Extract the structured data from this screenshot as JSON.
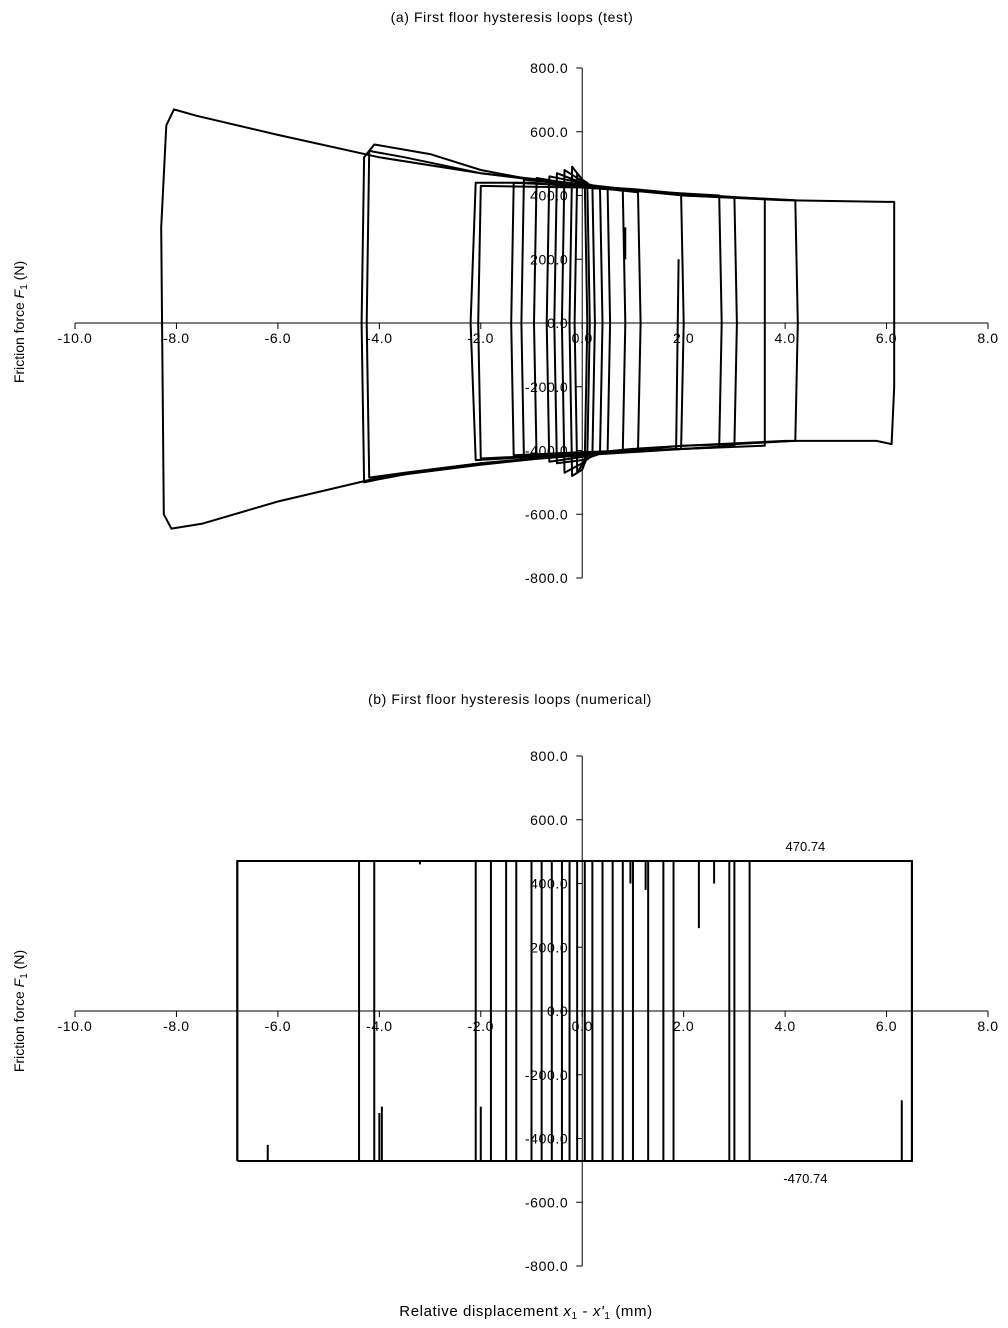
{
  "figure": {
    "xlabel_prefix": "Relative displacement ",
    "xlabel_var1": "x",
    "xlabel_sub1": "1",
    "xlabel_mid": " - ",
    "xlabel_var2": "x'",
    "xlabel_sub2": "1",
    "xlabel_unit": " (mm)"
  },
  "chart_data": [
    {
      "type": "line",
      "title": "(a) First floor hysteresis loops (test)",
      "xlabel": "Relative displacement x1 - x'1 (mm)",
      "ylabel_prefix": "Friction force ",
      "ylabel_var": "F",
      "ylabel_sub": "1",
      "ylabel_unit": " (N)",
      "xlim": [
        -10,
        8
      ],
      "ylim": [
        -800,
        800
      ],
      "x_ticks": [
        "-10.0",
        "-8.0",
        "-6.0",
        "-4.0",
        "-2.0",
        "0.0",
        "2.0",
        "4.0",
        "6.0",
        "8.0"
      ],
      "y_ticks": [
        "800.0",
        "600.0",
        "400.0",
        "200.0",
        "0.0",
        "-200.0",
        "-400.0",
        "-600.0",
        "-800.0"
      ],
      "line_color": "#000000",
      "grid": false,
      "series": [
        {
          "x": [
            -8.3,
            -8.2,
            -8.05,
            -7.6,
            -6.0,
            -4.0,
            -2.0,
            0.0,
            2.0,
            4.0,
            6.0,
            6.15,
            6.15,
            6.1,
            5.8,
            4.0,
            2.0,
            0.0,
            -2.0,
            -4.0,
            -6.0,
            -7.5,
            -8.1,
            -8.25,
            -8.3
          ],
          "y": [
            300,
            620,
            670,
            650,
            590,
            520,
            470,
            430,
            400,
            385,
            380,
            380,
            -200,
            -380,
            -370,
            -370,
            -385,
            -410,
            -445,
            -485,
            -560,
            -630,
            -645,
            -600,
            300
          ]
        },
        {
          "x": [
            -4.35,
            -4.3,
            -4.1,
            -3.0,
            -2.0,
            -1.0,
            0.0,
            1.0,
            2.0,
            3.0,
            4.2,
            4.25,
            4.2,
            3.0,
            2.0,
            1.0,
            0.0,
            -1.0,
            -2.0,
            -3.0,
            -4.0,
            -4.3,
            -4.35
          ],
          "y": [
            0,
            520,
            560,
            530,
            480,
            450,
            430,
            420,
            405,
            395,
            385,
            0,
            -370,
            -380,
            -385,
            -395,
            -410,
            -425,
            -440,
            -460,
            -490,
            -500,
            0
          ]
        },
        {
          "x": [
            -4.25,
            -4.2,
            -3.5,
            -2.0,
            0.0,
            2.0,
            3.6,
            3.6,
            2.0,
            0.0,
            -2.0,
            -3.5,
            -4.2,
            -4.25
          ],
          "y": [
            0,
            540,
            520,
            470,
            435,
            400,
            390,
            -385,
            -395,
            -415,
            -440,
            -470,
            -485,
            0
          ]
        },
        {
          "x": [
            -2.2,
            -2.1,
            -1.0,
            0.0,
            1.0,
            2.0,
            3.0,
            3.05,
            3.0,
            2.0,
            1.0,
            0.0,
            -1.0,
            -2.1,
            -2.2
          ],
          "y": [
            0,
            440,
            440,
            425,
            415,
            405,
            395,
            0,
            -385,
            -395,
            -400,
            -410,
            -420,
            -430,
            0
          ]
        },
        {
          "x": [
            -2.05,
            -2.0,
            0.0,
            2.7,
            2.75,
            2.7,
            0.0,
            -2.0,
            -2.05
          ],
          "y": [
            0,
            430,
            425,
            400,
            0,
            -390,
            -410,
            -425,
            0
          ]
        },
        {
          "x": [
            -1.4,
            -1.35,
            0.0,
            1.95,
            2.0,
            1.95,
            0.0,
            -1.35,
            -1.4
          ],
          "y": [
            0,
            440,
            430,
            405,
            0,
            -395,
            -405,
            -415,
            0
          ]
        },
        {
          "x": [
            -1.2,
            -1.15,
            0.0,
            1.1,
            1.15,
            1.1,
            0.0,
            -1.15,
            -1.2
          ],
          "y": [
            0,
            450,
            430,
            410,
            0,
            -400,
            -410,
            -420,
            0
          ]
        },
        {
          "x": [
            -0.95,
            -0.9,
            0.0,
            0.8,
            0.85,
            0.8,
            0.0,
            -0.9,
            -0.95
          ],
          "y": [
            0,
            455,
            430,
            415,
            0,
            -400,
            -415,
            -425,
            0
          ]
        },
        {
          "x": [
            -0.7,
            -0.65,
            0.0,
            0.5,
            0.55,
            0.5,
            0.0,
            -0.65,
            -0.7
          ],
          "y": [
            0,
            460,
            440,
            420,
            0,
            -405,
            -420,
            -435,
            0
          ]
        },
        {
          "x": [
            -0.55,
            -0.5,
            0.0,
            0.35,
            0.4,
            0.35,
            0.0,
            -0.5,
            -0.55
          ],
          "y": [
            0,
            470,
            440,
            425,
            0,
            -410,
            -430,
            -440,
            0
          ]
        },
        {
          "x": [
            -0.4,
            -0.35,
            0.0,
            0.2,
            0.25,
            0.2,
            0.0,
            -0.35,
            -0.4
          ],
          "y": [
            0,
            480,
            445,
            430,
            0,
            -415,
            -440,
            -470,
            0
          ]
        },
        {
          "x": [
            -0.25,
            -0.2,
            0.0,
            0.1,
            0.15,
            0.1,
            0.0,
            -0.2,
            -0.25
          ],
          "y": [
            0,
            490,
            450,
            440,
            0,
            -420,
            -460,
            -480,
            0
          ]
        },
        {
          "x": [
            -0.15,
            -0.1,
            0.05,
            0.1,
            0.05,
            -0.1,
            -0.15
          ],
          "y": [
            0,
            470,
            440,
            0,
            -430,
            -470,
            0
          ]
        },
        {
          "x": [
            0.85,
            0.85
          ],
          "y": [
            300,
            200
          ]
        },
        {
          "x": [
            1.85,
            1.9
          ],
          "y": [
            -400,
            200
          ]
        }
      ]
    },
    {
      "type": "line",
      "title": "(b) First floor hysteresis loops (numerical)",
      "xlabel": "Relative displacement x1 - x'1 (mm)",
      "ylabel_prefix": "Friction force ",
      "ylabel_var": "F",
      "ylabel_sub": "1",
      "ylabel_unit": " (N)",
      "xlim": [
        -10,
        8
      ],
      "ylim": [
        -800,
        800
      ],
      "x_ticks": [
        "-10.0",
        "-8.0",
        "-6.0",
        "-4.0",
        "-2.0",
        "0.0",
        "2.0",
        "4.0",
        "6.0",
        "8.0"
      ],
      "y_ticks": [
        "800.0",
        "600.0",
        "400.0",
        "200.0",
        "0.0",
        "-200.0",
        "-400.0",
        "-600.0",
        "-800.0"
      ],
      "line_color": "#000000",
      "grid": false,
      "annotations": [
        {
          "text": "470.74",
          "x": 4.4,
          "y": 470.74
        },
        {
          "text": "-470.74",
          "x": 4.4,
          "y": -470.74
        }
      ],
      "loop_edges_x": [
        -6.8,
        -4.4,
        -4.1,
        -2.1,
        -1.8,
        -1.5,
        -1.3,
        -1.0,
        -0.8,
        -0.6,
        -0.4,
        -0.25,
        -0.1,
        0.05,
        0.2,
        0.4,
        0.6,
        0.8,
        1.0,
        1.3,
        1.6,
        1.8,
        2.9,
        3.0,
        3.3,
        6.5
      ],
      "amplitude": 470.74,
      "spikes": [
        {
          "x": -6.2,
          "y": [
            -470.74,
            -420
          ]
        },
        {
          "x": -3.95,
          "y": [
            -470.74,
            -300
          ]
        },
        {
          "x": -4.0,
          "y": [
            -470.74,
            -320
          ]
        },
        {
          "x": -2.0,
          "y": [
            -470.74,
            -300
          ]
        },
        {
          "x": 6.3,
          "y": [
            -470.74,
            -280
          ]
        },
        {
          "x": 0.95,
          "y": [
            470.74,
            400
          ]
        },
        {
          "x": 1.25,
          "y": [
            470.74,
            380
          ]
        },
        {
          "x": 2.3,
          "y": [
            470.74,
            260
          ]
        },
        {
          "x": 2.6,
          "y": [
            470.74,
            400
          ]
        },
        {
          "x": -3.2,
          "y": [
            470.74,
            460
          ]
        }
      ]
    }
  ]
}
